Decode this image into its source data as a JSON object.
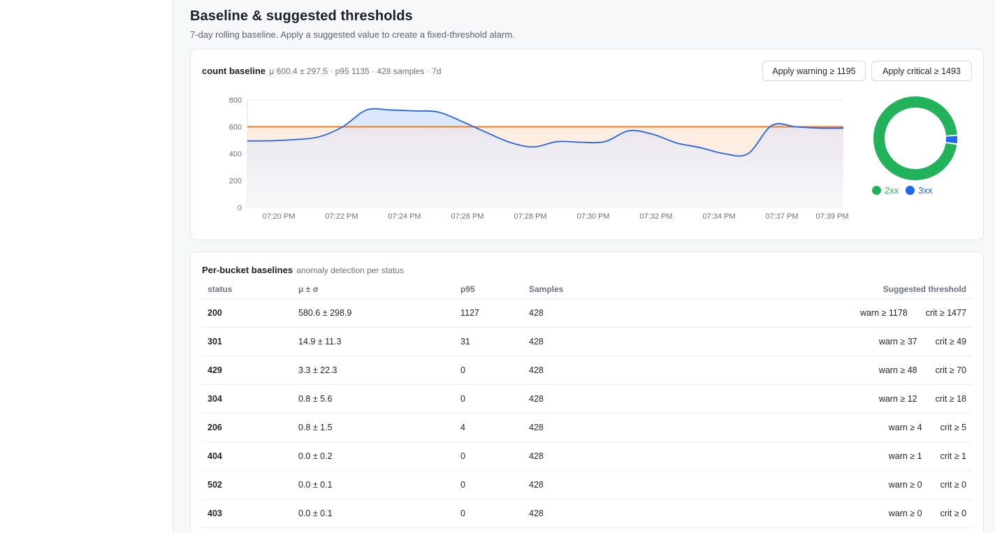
{
  "page": {
    "title": "Baseline & suggested thresholds",
    "subtitle": "7-day rolling baseline. Apply a suggested value to create a fixed-threshold alarm."
  },
  "baseline_card": {
    "name": "count baseline",
    "meta": "μ 600.4 ± 297.5 · p95 1135 · 428 samples · 7d",
    "apply_warning_label": "Apply warning ≥ 1195",
    "apply_critical_label": "Apply critical ≥ 1493"
  },
  "colors": {
    "line": "#2563eb",
    "baseline_line": "#ef7d22",
    "above_fill": "#dbe7fb",
    "below_fill": "#fdebdc",
    "green_2xx": "#22b35a",
    "blue_3xx": "#1f66f2",
    "grid": "#e6e8eb"
  },
  "chart_data": {
    "type": "line",
    "ylim": [
      0,
      800
    ],
    "yticks": [
      "800",
      "600",
      "400",
      "200",
      "0"
    ],
    "xticks": [
      "07:20 PM",
      "07:22 PM",
      "07:24 PM",
      "07:26 PM",
      "07:28 PM",
      "07:30 PM",
      "07:32 PM",
      "07:34 PM",
      "07:37 PM",
      "07:39 PM"
    ],
    "baseline": 600,
    "series": [
      {
        "values": [
          495,
          496,
          505,
          525,
          600,
          725,
          725,
          718,
          710,
          640,
          560,
          485,
          450,
          490,
          485,
          490,
          570,
          545,
          480,
          445,
          400,
          400,
          610,
          600,
          590,
          590
        ]
      }
    ]
  },
  "donut": {
    "type": "pie",
    "slices": [
      {
        "name": "2xx",
        "value": 96.6,
        "color": "#22b35a"
      },
      {
        "name": "3xx",
        "value": 3.4,
        "color": "#1f66f2"
      }
    ]
  },
  "buckets": {
    "title": "Per-bucket baselines",
    "meta": "anomaly detection per status",
    "headers": {
      "status": "status",
      "mu": "μ ± σ",
      "p95": "p95",
      "samples": "Samples",
      "threshold": "Suggested threshold"
    },
    "rows": [
      {
        "status": "200",
        "mu": "580.6 ± 298.9",
        "p95": "1127",
        "samples": "428",
        "warn": "warn ≥ 1178",
        "crit": "crit ≥ 1477"
      },
      {
        "status": "301",
        "mu": "14.9 ± 11.3",
        "p95": "31",
        "samples": "428",
        "warn": "warn ≥ 37",
        "crit": "crit ≥ 49"
      },
      {
        "status": "429",
        "mu": "3.3 ± 22.3",
        "p95": "0",
        "samples": "428",
        "warn": "warn ≥ 48",
        "crit": "crit ≥ 70"
      },
      {
        "status": "304",
        "mu": "0.8 ± 5.6",
        "p95": "0",
        "samples": "428",
        "warn": "warn ≥ 12",
        "crit": "crit ≥ 18"
      },
      {
        "status": "206",
        "mu": "0.8 ± 1.5",
        "p95": "4",
        "samples": "428",
        "warn": "warn ≥ 4",
        "crit": "crit ≥ 5"
      },
      {
        "status": "404",
        "mu": "0.0 ± 0.2",
        "p95": "0",
        "samples": "428",
        "warn": "warn ≥ 1",
        "crit": "crit ≥ 1"
      },
      {
        "status": "502",
        "mu": "0.0 ± 0.1",
        "p95": "0",
        "samples": "428",
        "warn": "warn ≥ 0",
        "crit": "crit ≥ 0"
      },
      {
        "status": "403",
        "mu": "0.0 ± 0.1",
        "p95": "0",
        "samples": "428",
        "warn": "warn ≥ 0",
        "crit": "crit ≥ 0"
      }
    ]
  }
}
